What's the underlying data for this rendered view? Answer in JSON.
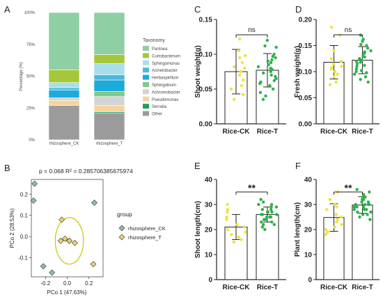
{
  "panel_letters": [
    "A",
    "B",
    "C",
    "D",
    "E",
    "F"
  ],
  "chart_data": [
    {
      "type": "stacked-bar",
      "panel": "A",
      "ylabel": "Percentage (%)",
      "yticks": [
        "0%",
        "25%",
        "50%",
        "75%",
        "100%"
      ],
      "legend_title": "Taxonomy",
      "categories": [
        "rhizosphere_CK",
        "rhizosphere_T"
      ],
      "series": [
        {
          "name": "Pantoea",
          "color": "#8ecfa3",
          "values": [
            45,
            33
          ]
        },
        {
          "name": "Curtobacterium",
          "color": "#a5c739",
          "values": [
            10,
            7
          ]
        },
        {
          "name": "Sphingomonas",
          "color": "#a9dfeb",
          "values": [
            4,
            9
          ]
        },
        {
          "name": "Acinetobacter",
          "color": "#4fb8dc",
          "values": [
            2,
            4
          ]
        },
        {
          "name": "Herbaspirillum",
          "color": "#1cabda",
          "values": [
            6,
            9
          ]
        },
        {
          "name": "Sphingobium",
          "color": "#80c98e",
          "values": [
            0,
            4
          ]
        },
        {
          "name": "Achromobacter",
          "color": "#d4d4d4",
          "values": [
            2,
            7
          ]
        },
        {
          "name": "Pseudomonas",
          "color": "#f4d49e",
          "values": [
            4,
            5
          ]
        },
        {
          "name": "Serratia",
          "color": "#1f9d66",
          "values": [
            0,
            1
          ]
        },
        {
          "name": "Other",
          "color": "#9b9b9b",
          "values": [
            27,
            21
          ]
        }
      ]
    },
    {
      "type": "scatter",
      "panel": "B",
      "annotation": "p = 0.068 R² = 0.285706385675974",
      "xlabel": "PCo 1 (47.63%)",
      "ylabel": "PCo 2 (28.53%)",
      "xlim": [
        -0.33,
        0.33
      ],
      "ylim": [
        -0.19,
        0.27
      ],
      "xticks": [
        -0.2,
        0,
        0.2
      ],
      "xtick_labels": [
        "-0.2",
        "0.0",
        "0.2"
      ],
      "yticks": [
        -0.1,
        0,
        0.1,
        0.2
      ],
      "ytick_labels": [
        "-0.1",
        "0.0",
        "0.1",
        "0.2"
      ],
      "legend_title": "group",
      "ellipse": {
        "cx": 0.02,
        "cy": -0.02,
        "rx": 0.13,
        "ry": 0.11,
        "color": "#c8c800"
      },
      "series": [
        {
          "name": "rhizosphere_CK",
          "color": "#8fbf9f",
          "points": [
            [
              -0.3,
              0.25
            ],
            [
              -0.31,
              0.17
            ],
            [
              0.25,
              0.16
            ],
            [
              -0.14,
              -0.17
            ],
            [
              -0.22,
              -0.14
            ],
            [
              0.02,
              -0.02
            ]
          ]
        },
        {
          "name": "rhizosphere_T",
          "color": "#e6d46e",
          "points": [
            [
              -0.05,
              0.08
            ],
            [
              -0.06,
              -0.02
            ],
            [
              -0.02,
              -0.01
            ],
            [
              0.02,
              -0.02
            ],
            [
              0.07,
              -0.03
            ],
            [
              0.24,
              -0.13
            ]
          ]
        }
      ]
    },
    {
      "type": "bar",
      "panel": "C",
      "ylabel": "Shoot weight(g)",
      "categories": [
        "Rice-CK",
        "Rice-T"
      ],
      "colors": [
        "#f0e23c",
        "#2db14a"
      ],
      "values": [
        0.075,
        0.077
      ],
      "error": [
        0.032,
        0.024
      ],
      "ylim": [
        0,
        0.15
      ],
      "yticks": [
        "0.00",
        "0.05",
        "0.10",
        "0.15"
      ],
      "significance": "ns",
      "points": [
        [
          0.122,
          0.105,
          0.098,
          0.095,
          0.088,
          0.082,
          0.08,
          0.075,
          0.07,
          0.063,
          0.055,
          0.05,
          0.042,
          0.035
        ],
        [
          0.12,
          0.112,
          0.11,
          0.1,
          0.097,
          0.095,
          0.092,
          0.09,
          0.088,
          0.085,
          0.082,
          0.08,
          0.078,
          0.075,
          0.073,
          0.07,
          0.068,
          0.065,
          0.062,
          0.06,
          0.058,
          0.055,
          0.05,
          0.045,
          0.04,
          0.035
        ]
      ]
    },
    {
      "type": "bar",
      "panel": "D",
      "ylabel": "Fresh weight(g)",
      "categories": [
        "Rice-CK",
        "Rice-T"
      ],
      "colors": [
        "#f0e23c",
        "#2db14a"
      ],
      "values": [
        0.118,
        0.122
      ],
      "error": [
        0.032,
        0.026
      ],
      "ylim": [
        0,
        0.2
      ],
      "yticks": [
        "0.00",
        "0.05",
        "0.10",
        "0.15",
        "0.20"
      ],
      "significance": "ns",
      "points": [
        [
          0.185,
          0.17,
          0.14,
          0.125,
          0.12,
          0.115,
          0.11,
          0.108,
          0.105,
          0.1,
          0.095,
          0.09,
          0.08,
          0.075
        ],
        [
          0.17,
          0.162,
          0.158,
          0.152,
          0.15,
          0.145,
          0.14,
          0.138,
          0.135,
          0.13,
          0.128,
          0.125,
          0.122,
          0.12,
          0.118,
          0.115,
          0.112,
          0.11,
          0.105,
          0.102,
          0.1,
          0.098,
          0.095,
          0.09,
          0.085,
          0.08
        ]
      ]
    },
    {
      "type": "bar",
      "panel": "E",
      "ylabel": "Shoot length(cm)",
      "categories": [
        "Rice-CK",
        "Rice-T"
      ],
      "colors": [
        "#f0e23c",
        "#2db14a"
      ],
      "values": [
        21,
        26
      ],
      "error": [
        5,
        3
      ],
      "ylim": [
        0,
        40
      ],
      "yticks": [
        "0",
        "10",
        "20",
        "30",
        "40"
      ],
      "significance": "**",
      "points": [
        [
          30,
          28,
          27,
          25,
          24,
          22,
          21,
          20,
          19,
          18,
          17,
          16,
          15
        ],
        [
          32,
          31,
          30,
          30,
          29,
          29,
          28,
          28,
          27,
          27,
          27,
          26,
          26,
          26,
          25,
          25,
          25,
          24,
          24,
          24,
          23,
          23,
          22,
          22,
          21,
          20
        ]
      ]
    },
    {
      "type": "bar",
      "panel": "F",
      "ylabel": "Plant length(cm)",
      "categories": [
        "Rice-CK",
        "Rice-T"
      ],
      "colors": [
        "#f0e23c",
        "#2db14a"
      ],
      "values": [
        24.8,
        29.8
      ],
      "error": [
        5.5,
        3.3
      ],
      "ylim": [
        0,
        40
      ],
      "yticks": [
        "0",
        "10",
        "20",
        "30",
        "40"
      ],
      "significance": "**",
      "points": [
        [
          35,
          32,
          30,
          29,
          28,
          26,
          25,
          24,
          23,
          22,
          21,
          20,
          19,
          18
        ],
        [
          36,
          35,
          34,
          33,
          33,
          32,
          32,
          31,
          31,
          31,
          30,
          30,
          30,
          30,
          29,
          29,
          29,
          28,
          28,
          28,
          27,
          27,
          26,
          26,
          25,
          24
        ]
      ]
    }
  ]
}
